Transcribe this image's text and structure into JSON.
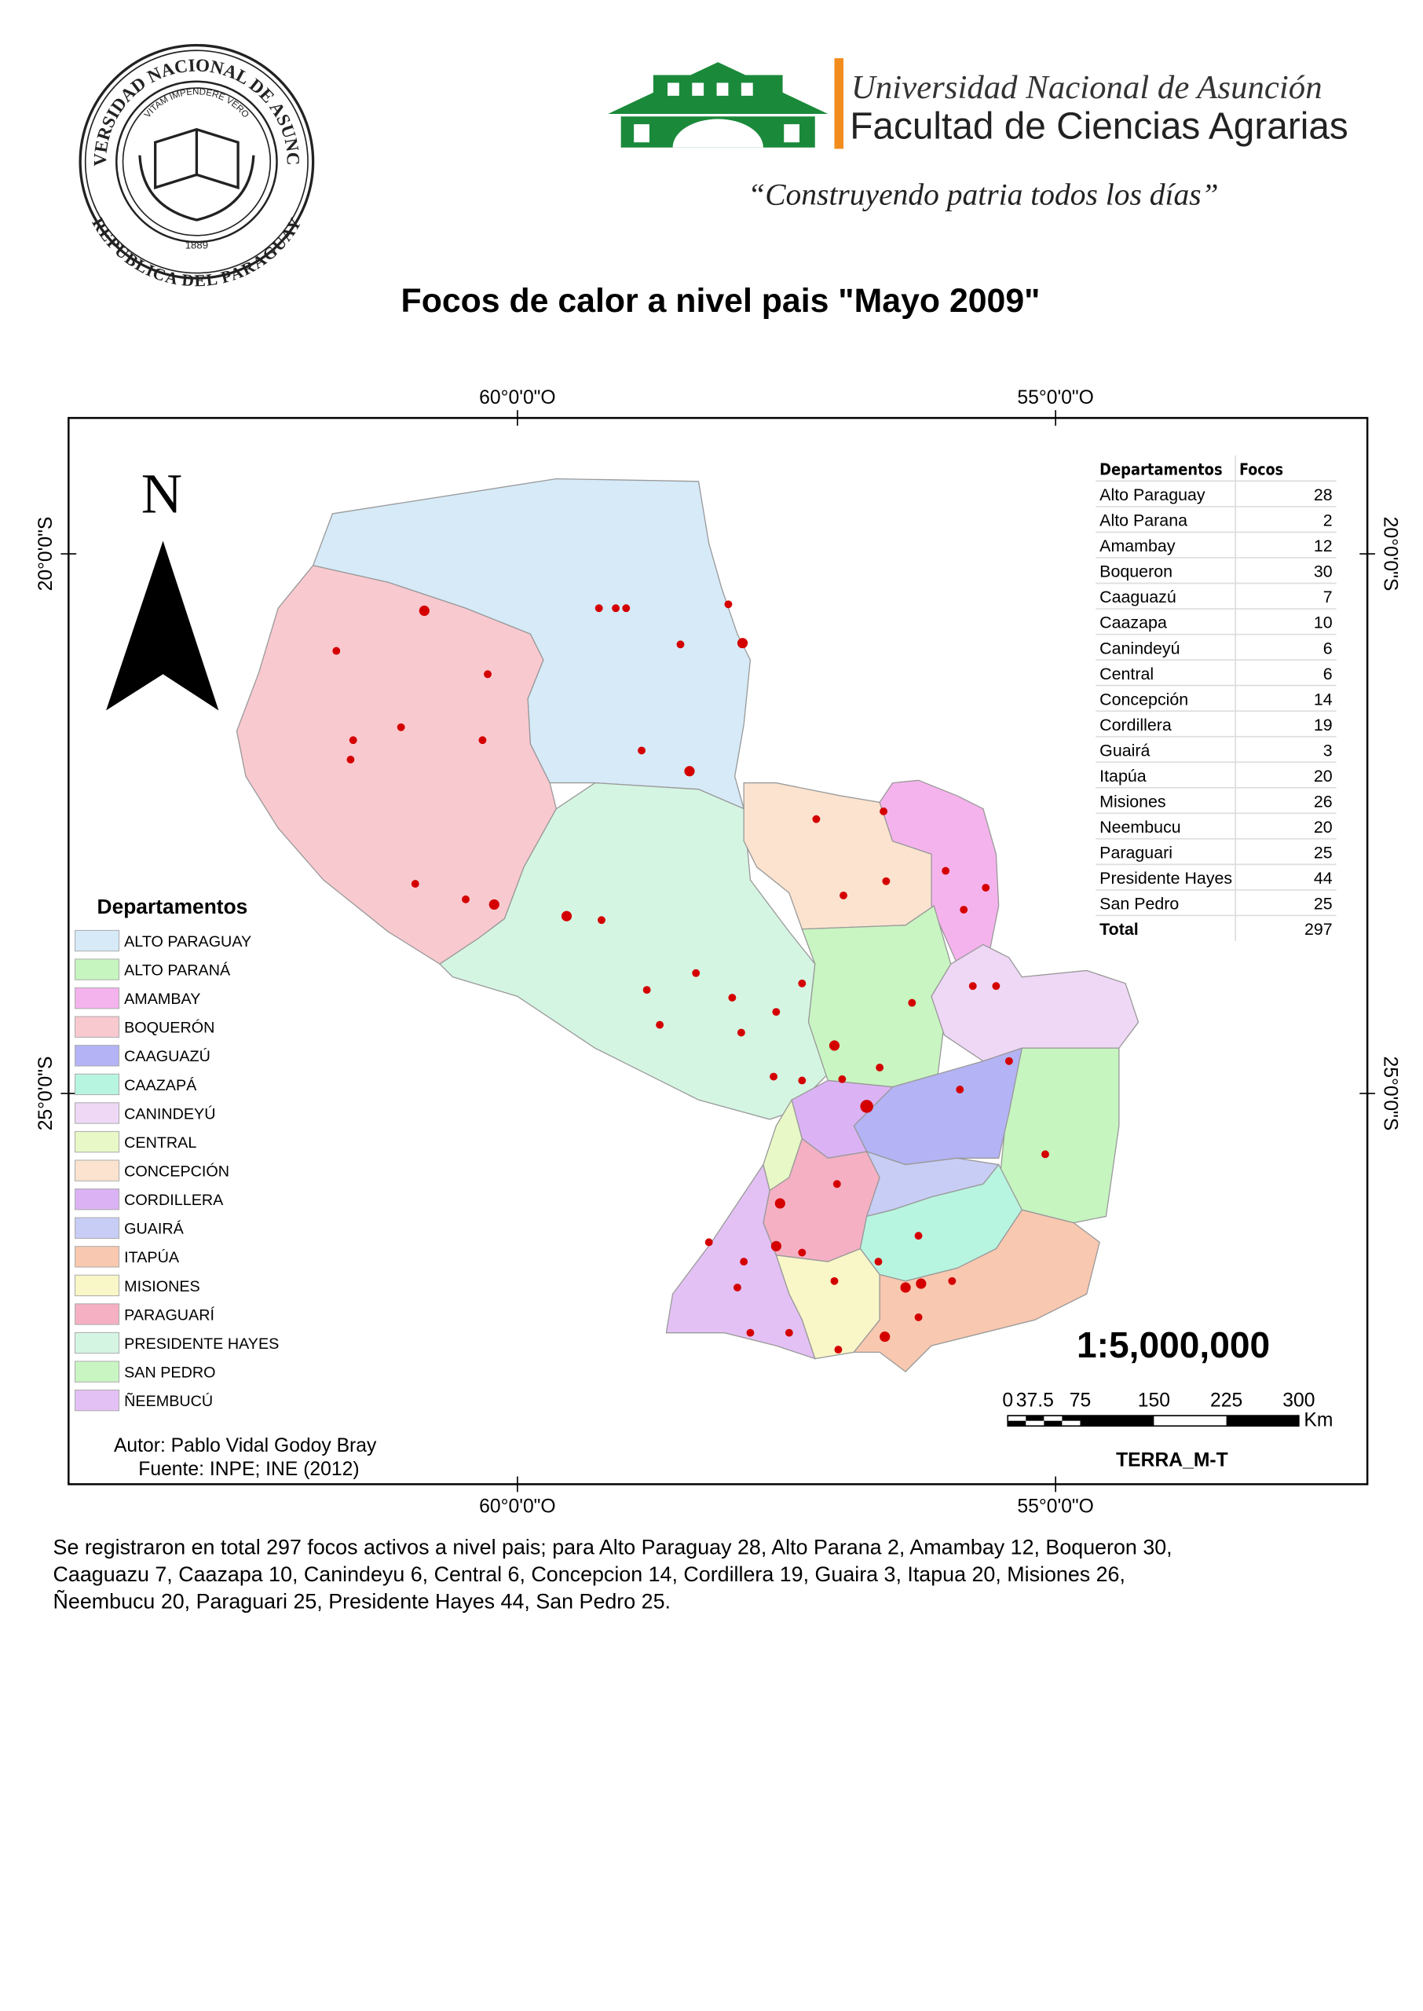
{
  "header": {
    "seal": {
      "outer_top": "UNIVERSIDAD NACIONAL DE ASUNCION",
      "outer_bottom": "REPUBLICA DEL PARAGUAY",
      "motto": "VITAM IMPENDERE VERO",
      "year": "1889"
    },
    "university": "Universidad Nacional de Asunción",
    "faculty": "Facultad de Ciencias Agrarias",
    "slogan": "“Construyendo patria todos los días”"
  },
  "title": "Focos de calor a nivel pais \"Mayo 2009\"",
  "map": {
    "north": "N",
    "lon_labels": [
      "60°0'0\"O",
      "55°0'0\"O"
    ],
    "lat_labels": [
      "20°0'0\"S",
      "25°0'0\"S"
    ],
    "table": {
      "headers": [
        "Departamentos",
        "Focos"
      ],
      "rows": [
        [
          "Alto Paraguay",
          28
        ],
        [
          "Alto Parana",
          2
        ],
        [
          "Amambay",
          12
        ],
        [
          "Boqueron",
          30
        ],
        [
          "Caaguazú",
          7
        ],
        [
          "Caazapa",
          10
        ],
        [
          "Canindeyú",
          6
        ],
        [
          "Central",
          6
        ],
        [
          "Concepción",
          14
        ],
        [
          "Cordillera",
          19
        ],
        [
          "Guairá",
          3
        ],
        [
          "Itapúa",
          20
        ],
        [
          "Misiones",
          26
        ],
        [
          "Neembucu",
          20
        ],
        [
          "Paraguari",
          25
        ],
        [
          "Presidente Hayes",
          44
        ],
        [
          "San Pedro",
          25
        ],
        [
          "Total",
          297
        ]
      ]
    },
    "legend": {
      "title": "Departamentos",
      "entries": [
        {
          "label": "ALTO PARAGUAY",
          "color": "#d6eaf8"
        },
        {
          "label": "ALTO PARANÁ",
          "color": "#c6f5c0"
        },
        {
          "label": "AMAMBAY",
          "color": "#f5b3ed"
        },
        {
          "label": "BOQUERÓN",
          "color": "#f9c9d0"
        },
        {
          "label": "CAAGUAZÚ",
          "color": "#b3b3f5"
        },
        {
          "label": "CAAZAPÁ",
          "color": "#b8f5e0"
        },
        {
          "label": "CANINDEYÚ",
          "color": "#eed8f6"
        },
        {
          "label": "CENTRAL",
          "color": "#e8f8c6"
        },
        {
          "label": "CONCEPCIÓN",
          "color": "#fbe3cf"
        },
        {
          "label": "CORDILLERA",
          "color": "#dbb3f5"
        },
        {
          "label": "GUAIRÁ",
          "color": "#c8cdf5"
        },
        {
          "label": "ITAPÚA",
          "color": "#f9c8b0"
        },
        {
          "label": "MISIONES",
          "color": "#f9f6c8"
        },
        {
          "label": "PARAGUARÍ",
          "color": "#f5b0c4"
        },
        {
          "label": "PRESIDENTE HAYES",
          "color": "#d5f5e3"
        },
        {
          "label": "SAN PEDRO",
          "color": "#c9f5c2"
        },
        {
          "label": "ÑEEMBUCÚ",
          "color": "#e3c1f5"
        }
      ]
    },
    "author": "Autor: Pablo Vidal Godoy Bray",
    "source": "Fuente: INPE; INE (2012)",
    "scale": "1:5,000,000",
    "scale_bar": [
      "0",
      "37.5",
      "75",
      "150",
      "225",
      "300"
    ],
    "scale_unit": "Km",
    "credit": "TERRA_M-T"
  },
  "footer_text": [
    "Se registraron en total 297 focos activos a nivel pais; para Alto Paraguay 28, Alto Parana 2, Amambay 12, Boqueron 30,",
    "Caaguazu 7, Caazapa 10, Canindeyu 6, Central 6, Concepcion 14, Cordillera 19, Guaira 3, Itapua 20, Misiones 26,",
    "Ñeembucu 20, Paraguari 25, Presidente Hayes 44, San Pedro 25."
  ]
}
